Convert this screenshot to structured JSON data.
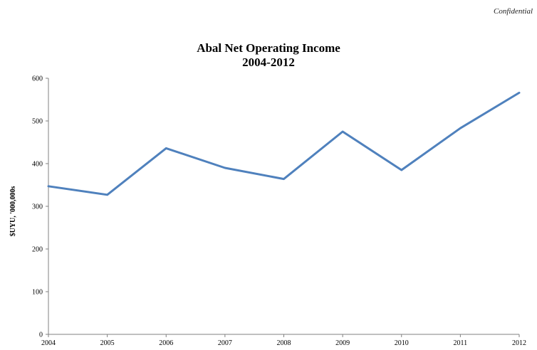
{
  "header": {
    "confidential_label": "Confidential"
  },
  "chart_data": {
    "type": "line",
    "title": "Abal Net Operating Income",
    "subtitle": "2004-2012",
    "xlabel": "",
    "ylabel": "$UYU, '000,000s",
    "categories": [
      "2004",
      "2005",
      "2006",
      "2007",
      "2008",
      "2009",
      "2010",
      "2011",
      "2012"
    ],
    "series": [
      {
        "values": [
          347,
          327,
          436,
          390,
          364,
          475,
          385,
          483,
          566
        ],
        "color": "#4f81bd"
      }
    ],
    "ylim": [
      0,
      600
    ],
    "yticks": [
      "0",
      "100",
      "200",
      "300",
      "400",
      "500",
      "600"
    ],
    "grid": false,
    "legend": "none"
  }
}
